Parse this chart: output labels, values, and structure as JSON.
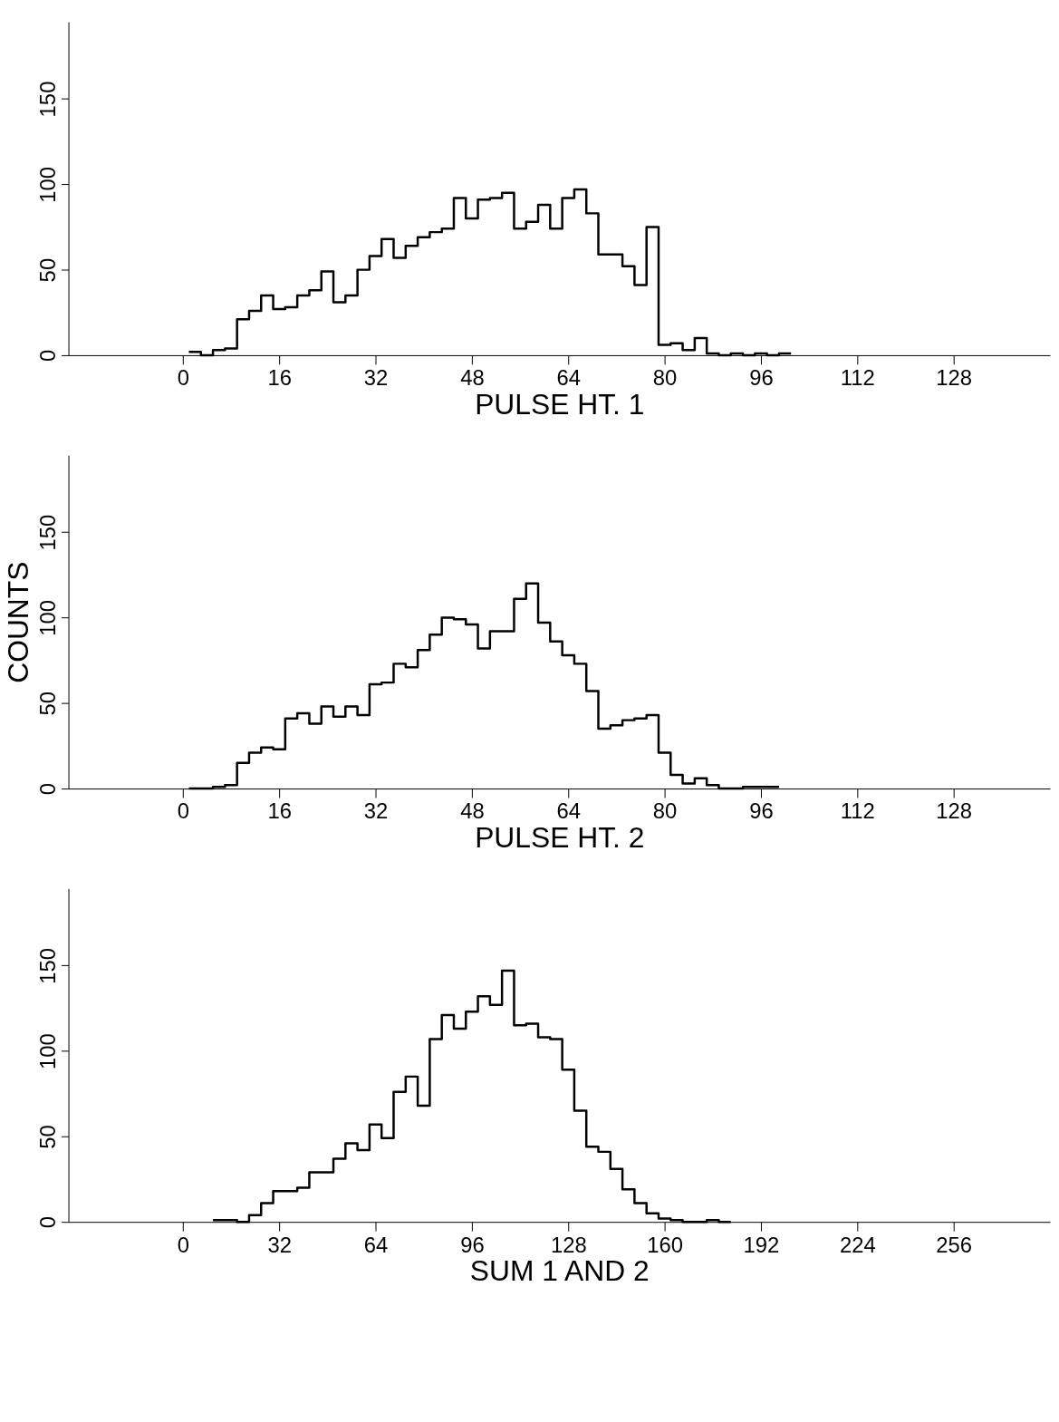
{
  "chart_data": [
    {
      "type": "histogram",
      "xlabel": "PULSE HT. 1",
      "color": "#000000",
      "grid": false,
      "xlim": [
        -19,
        144
      ],
      "ylim": [
        0,
        195
      ],
      "xticks": [
        0,
        16,
        32,
        48,
        64,
        80,
        96,
        112,
        128
      ],
      "yticks": [
        0,
        50,
        100,
        150
      ],
      "bins": [
        1,
        3,
        5,
        7,
        9,
        11,
        13,
        15,
        17,
        19,
        21,
        23,
        25,
        27,
        29,
        31,
        33,
        35,
        37,
        39,
        41,
        43,
        45,
        47,
        49,
        51,
        53,
        55,
        57,
        59,
        61,
        63,
        65,
        67,
        69,
        71,
        73,
        75,
        77,
        79,
        81,
        83,
        85,
        87,
        89,
        91,
        93,
        95,
        97,
        99,
        101
      ],
      "values": [
        2,
        0,
        3,
        4,
        21,
        26,
        35,
        27,
        28,
        35,
        38,
        49,
        31,
        35,
        50,
        58,
        68,
        57,
        64,
        69,
        72,
        74,
        92,
        80,
        91,
        92,
        95,
        74,
        78,
        88,
        74,
        92,
        97,
        83,
        59,
        59,
        52,
        41,
        75,
        6,
        7,
        3,
        10,
        1,
        0,
        1,
        0,
        1,
        0,
        1
      ]
    },
    {
      "type": "histogram",
      "xlabel": "PULSE HT. 2",
      "ylabel": "COUNTS",
      "color": "#000000",
      "grid": false,
      "xlim": [
        -19,
        144
      ],
      "ylim": [
        0,
        195
      ],
      "xticks": [
        0,
        16,
        32,
        48,
        64,
        80,
        96,
        112,
        128
      ],
      "yticks": [
        0,
        50,
        100,
        150
      ],
      "bins": [
        1,
        3,
        5,
        7,
        9,
        11,
        13,
        15,
        17,
        19,
        21,
        23,
        25,
        27,
        29,
        31,
        33,
        35,
        37,
        39,
        41,
        43,
        45,
        47,
        49,
        51,
        53,
        55,
        57,
        59,
        61,
        63,
        65,
        67,
        69,
        71,
        73,
        75,
        77,
        79,
        81,
        83,
        85,
        87,
        89,
        91,
        93,
        95,
        97,
        99
      ],
      "values": [
        0,
        0,
        1,
        2,
        15,
        21,
        24,
        23,
        41,
        44,
        38,
        48,
        42,
        48,
        43,
        61,
        62,
        73,
        71,
        81,
        90,
        100,
        99,
        96,
        82,
        92,
        92,
        111,
        120,
        97,
        86,
        78,
        73,
        57,
        35,
        37,
        40,
        41,
        43,
        21,
        8,
        3,
        6,
        2,
        0,
        0,
        1,
        1,
        1
      ]
    },
    {
      "type": "histogram",
      "xlabel": "SUM 1 AND 2",
      "color": "#000000",
      "grid": false,
      "xlim": [
        -38,
        288
      ],
      "ylim": [
        0,
        195
      ],
      "xticks": [
        0,
        32,
        64,
        96,
        128,
        160,
        192,
        224,
        256
      ],
      "yticks": [
        0,
        50,
        100,
        150
      ],
      "bins": [
        10,
        14,
        18,
        22,
        26,
        30,
        34,
        38,
        42,
        46,
        50,
        54,
        58,
        62,
        66,
        70,
        74,
        78,
        82,
        86,
        90,
        94,
        98,
        102,
        106,
        110,
        114,
        118,
        122,
        126,
        130,
        134,
        138,
        142,
        146,
        150,
        154,
        158,
        162,
        166,
        170,
        174,
        178,
        182
      ],
      "values": [
        1,
        1,
        0,
        4,
        11,
        18,
        18,
        20,
        29,
        29,
        37,
        46,
        42,
        57,
        49,
        76,
        85,
        68,
        107,
        121,
        113,
        123,
        132,
        127,
        147,
        115,
        116,
        108,
        107,
        89,
        65,
        44,
        41,
        31,
        19,
        11,
        5,
        2,
        1,
        0,
        0,
        1,
        0
      ]
    }
  ]
}
